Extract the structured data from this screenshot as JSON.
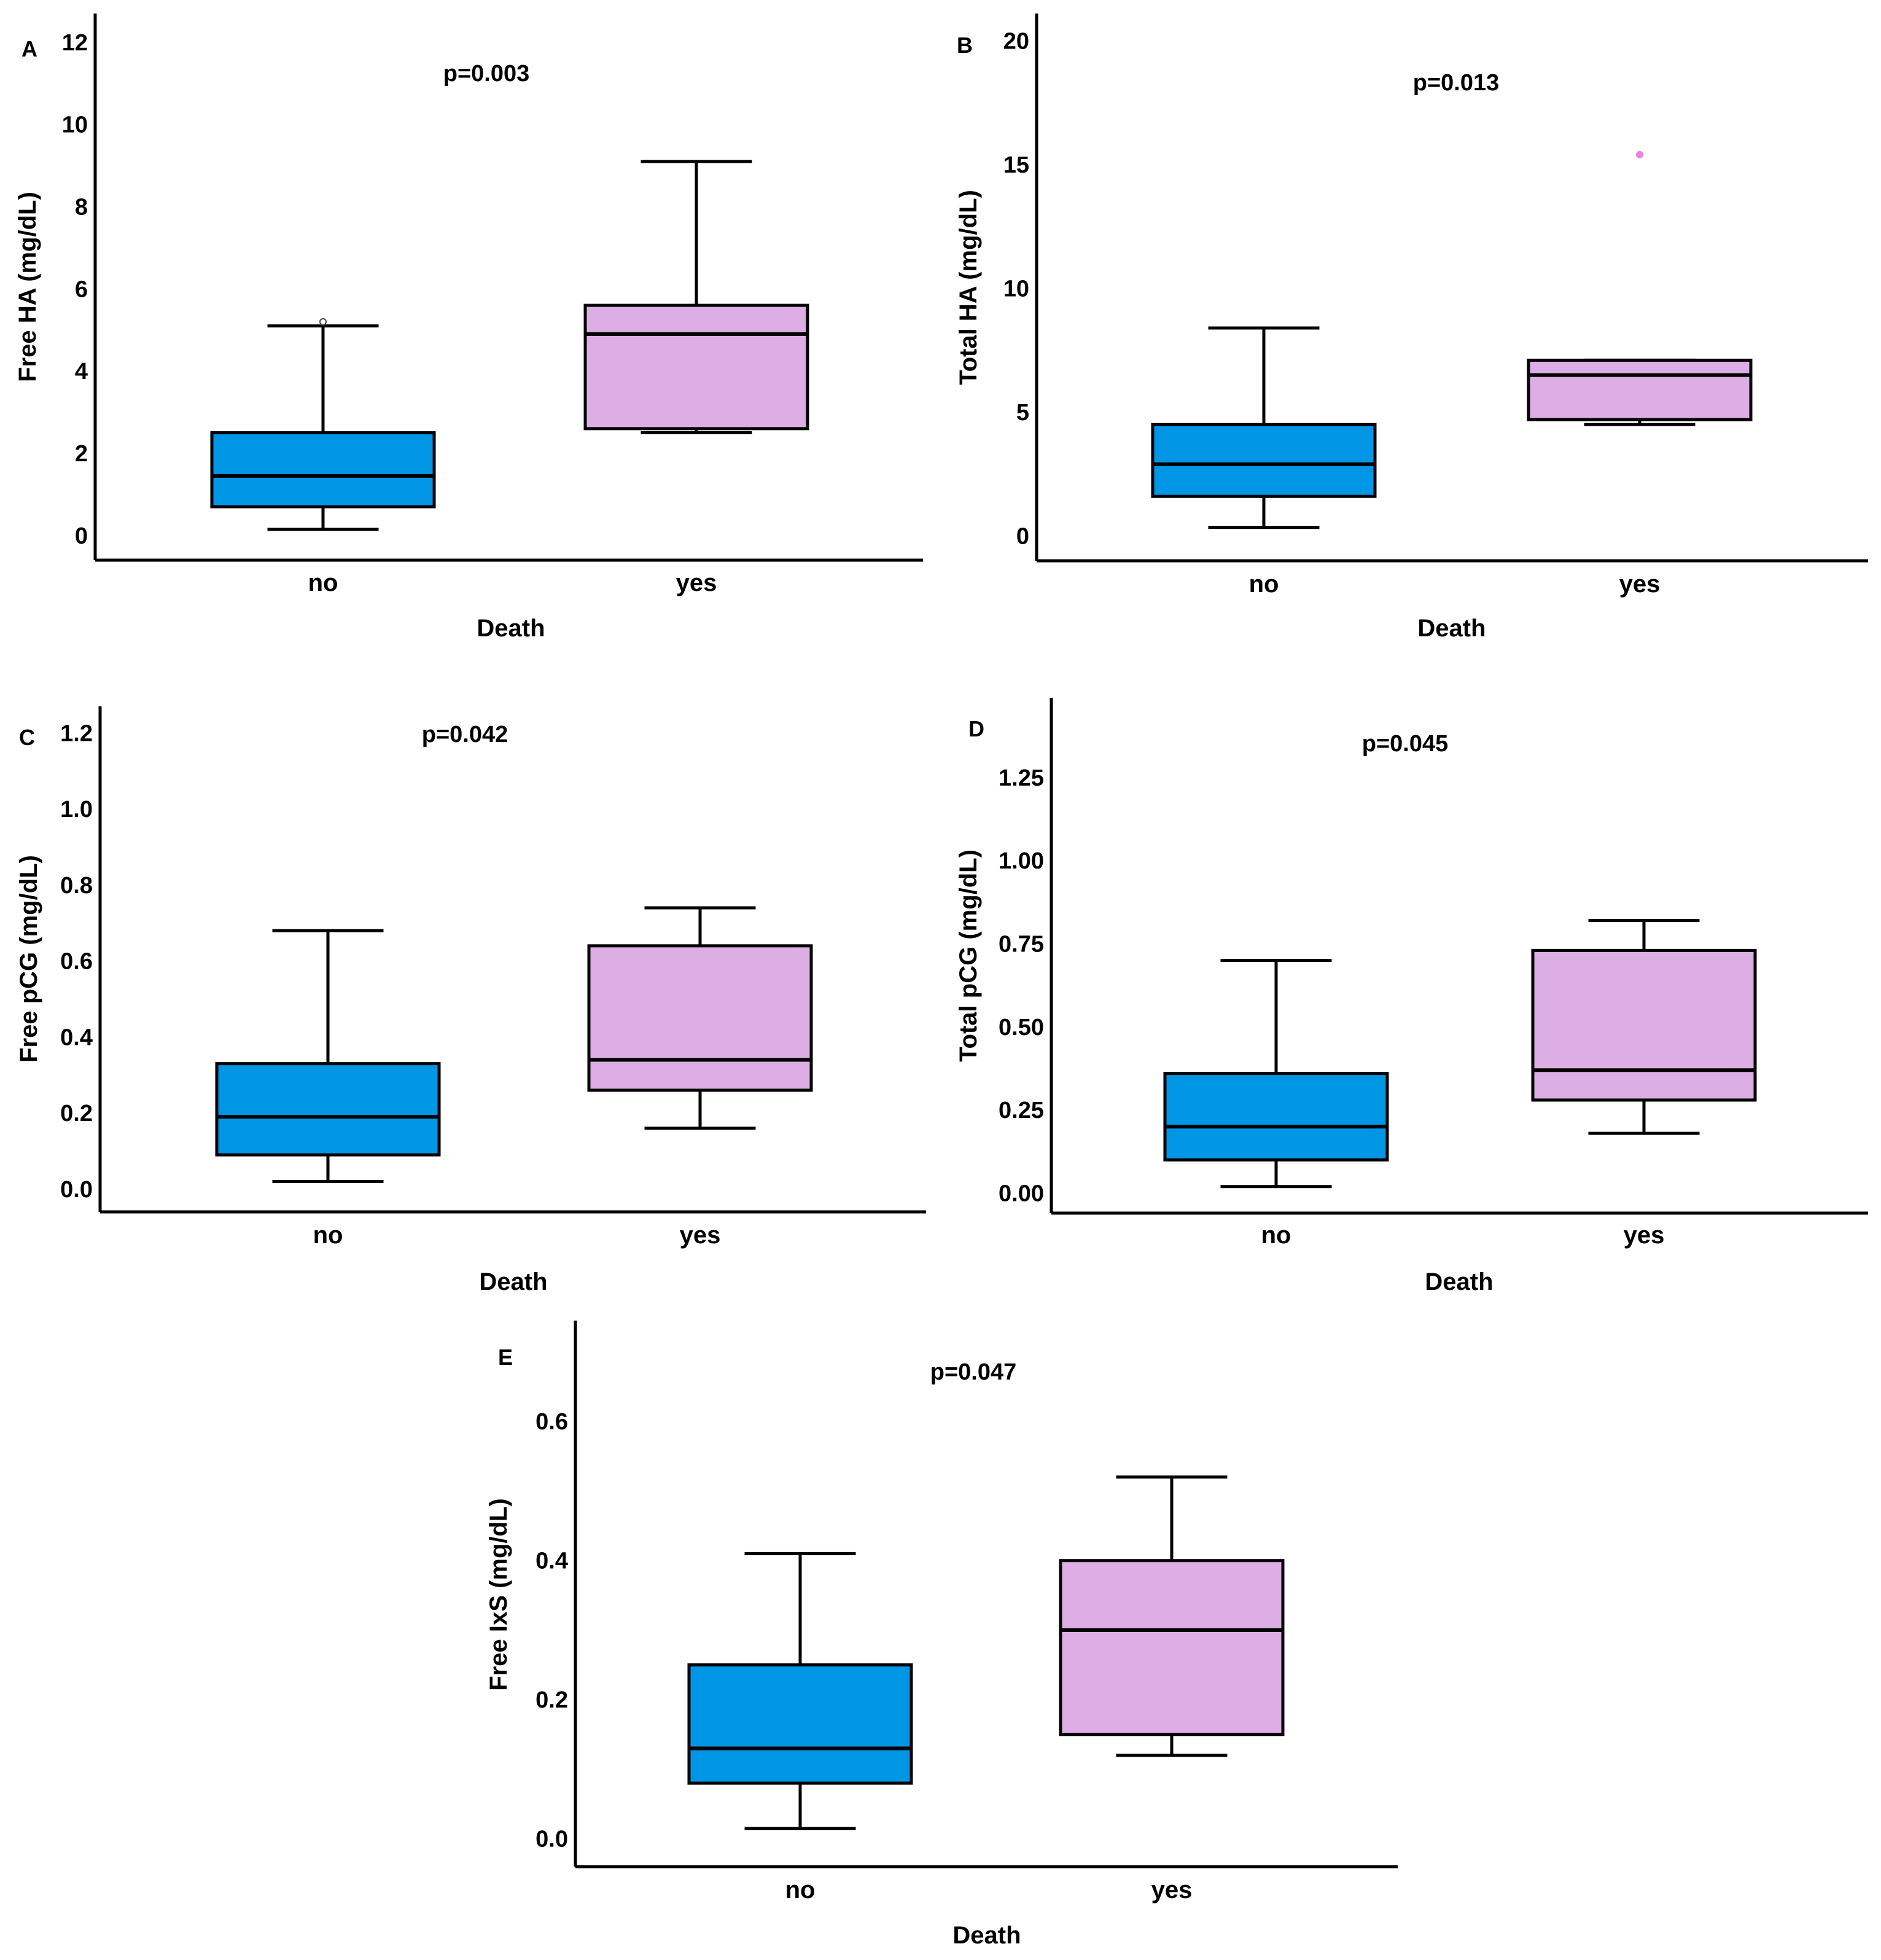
{
  "colors": {
    "no": "#0096e6",
    "yes": "#dcaee3",
    "outlier_no": "#ffffff",
    "outlier_yes": "#ee7fe6"
  },
  "chart_data": [
    {
      "type": "box",
      "panel": "A",
      "pvalue": "p=0.003",
      "xlabel": "Death",
      "ylabel": "Free HA (mg/dL)",
      "ylim": [
        -0.6,
        12.7
      ],
      "yticks": [
        0,
        2,
        4,
        6,
        8,
        10,
        12
      ],
      "ytick_labels": [
        "0",
        "2",
        "4",
        "6",
        "8",
        "10",
        "12"
      ],
      "categories": [
        "no",
        "yes"
      ],
      "boxes": [
        {
          "category": "no",
          "whisker_low": 0.15,
          "q1": 0.7,
          "median": 1.45,
          "q3": 2.5,
          "whisker_high": 5.1,
          "outliers": [
            5.2
          ]
        },
        {
          "category": "yes",
          "whisker_low": 2.5,
          "q1": 2.6,
          "median": 4.9,
          "q3": 5.6,
          "whisker_high": 9.1,
          "outliers": []
        }
      ]
    },
    {
      "type": "box",
      "panel": "B",
      "pvalue": "p=0.013",
      "xlabel": "Death",
      "ylabel": "Total HA (mg/dL)",
      "ylim": [
        -1.0,
        21.1
      ],
      "yticks": [
        0,
        5,
        10,
        15,
        20
      ],
      "ytick_labels": [
        "0",
        "5",
        "10",
        "15",
        "20"
      ],
      "categories": [
        "no",
        "yes"
      ],
      "boxes": [
        {
          "category": "no",
          "whisker_low": 0.35,
          "q1": 1.6,
          "median": 2.9,
          "q3": 4.5,
          "whisker_high": 8.4,
          "outliers": []
        },
        {
          "category": "yes",
          "whisker_low": 4.5,
          "q1": 4.7,
          "median": 6.5,
          "q3": 7.1,
          "whisker_high": 7.1,
          "outliers": [
            15.4
          ]
        }
      ]
    },
    {
      "type": "box",
      "panel": "C",
      "pvalue": "p=0.042",
      "xlabel": "Death",
      "ylabel": "Free pCG (mg/dL)",
      "ylim": [
        -0.06,
        1.27
      ],
      "yticks": [
        0.0,
        0.2,
        0.4,
        0.6,
        0.8,
        1.0,
        1.2
      ],
      "ytick_labels": [
        "0.0",
        "0.2",
        "0.4",
        "0.6",
        "0.8",
        "1.0",
        "1.2"
      ],
      "categories": [
        "no",
        "yes"
      ],
      "boxes": [
        {
          "category": "no",
          "whisker_low": 0.02,
          "q1": 0.09,
          "median": 0.19,
          "q3": 0.33,
          "whisker_high": 0.68,
          "outliers": []
        },
        {
          "category": "yes",
          "whisker_low": 0.16,
          "q1": 0.26,
          "median": 0.34,
          "q3": 0.64,
          "whisker_high": 0.74,
          "outliers": []
        }
      ]
    },
    {
      "type": "box",
      "panel": "D",
      "pvalue": "p=0.045",
      "xlabel": "Death",
      "ylabel": "Total pCG (mg/dL)",
      "ylim": [
        -0.06,
        1.49
      ],
      "yticks": [
        0.0,
        0.25,
        0.5,
        0.75,
        1.0,
        1.25
      ],
      "ytick_labels": [
        "0.00",
        "0.25",
        "0.50",
        "0.75",
        "1.00",
        "1.25"
      ],
      "categories": [
        "no",
        "yes"
      ],
      "boxes": [
        {
          "category": "no",
          "whisker_low": 0.02,
          "q1": 0.1,
          "median": 0.2,
          "q3": 0.36,
          "whisker_high": 0.7,
          "outliers": []
        },
        {
          "category": "yes",
          "whisker_low": 0.18,
          "q1": 0.28,
          "median": 0.37,
          "q3": 0.73,
          "whisker_high": 0.82,
          "outliers": []
        }
      ]
    },
    {
      "type": "box",
      "panel": "E",
      "pvalue": "p=0.047",
      "xlabel": "Death",
      "ylabel": "Free IxS (mg/dL)",
      "ylim": [
        -0.04,
        0.745
      ],
      "yticks": [
        0.0,
        0.2,
        0.4,
        0.6
      ],
      "ytick_labels": [
        "0.0",
        "0.2",
        "0.4",
        "0.6"
      ],
      "categories": [
        "no",
        "yes"
      ],
      "boxes": [
        {
          "category": "no",
          "whisker_low": 0.015,
          "q1": 0.08,
          "median": 0.13,
          "q3": 0.25,
          "whisker_high": 0.41,
          "outliers": []
        },
        {
          "category": "yes",
          "whisker_low": 0.12,
          "q1": 0.15,
          "median": 0.3,
          "q3": 0.4,
          "whisker_high": 0.52,
          "outliers": []
        }
      ]
    }
  ]
}
